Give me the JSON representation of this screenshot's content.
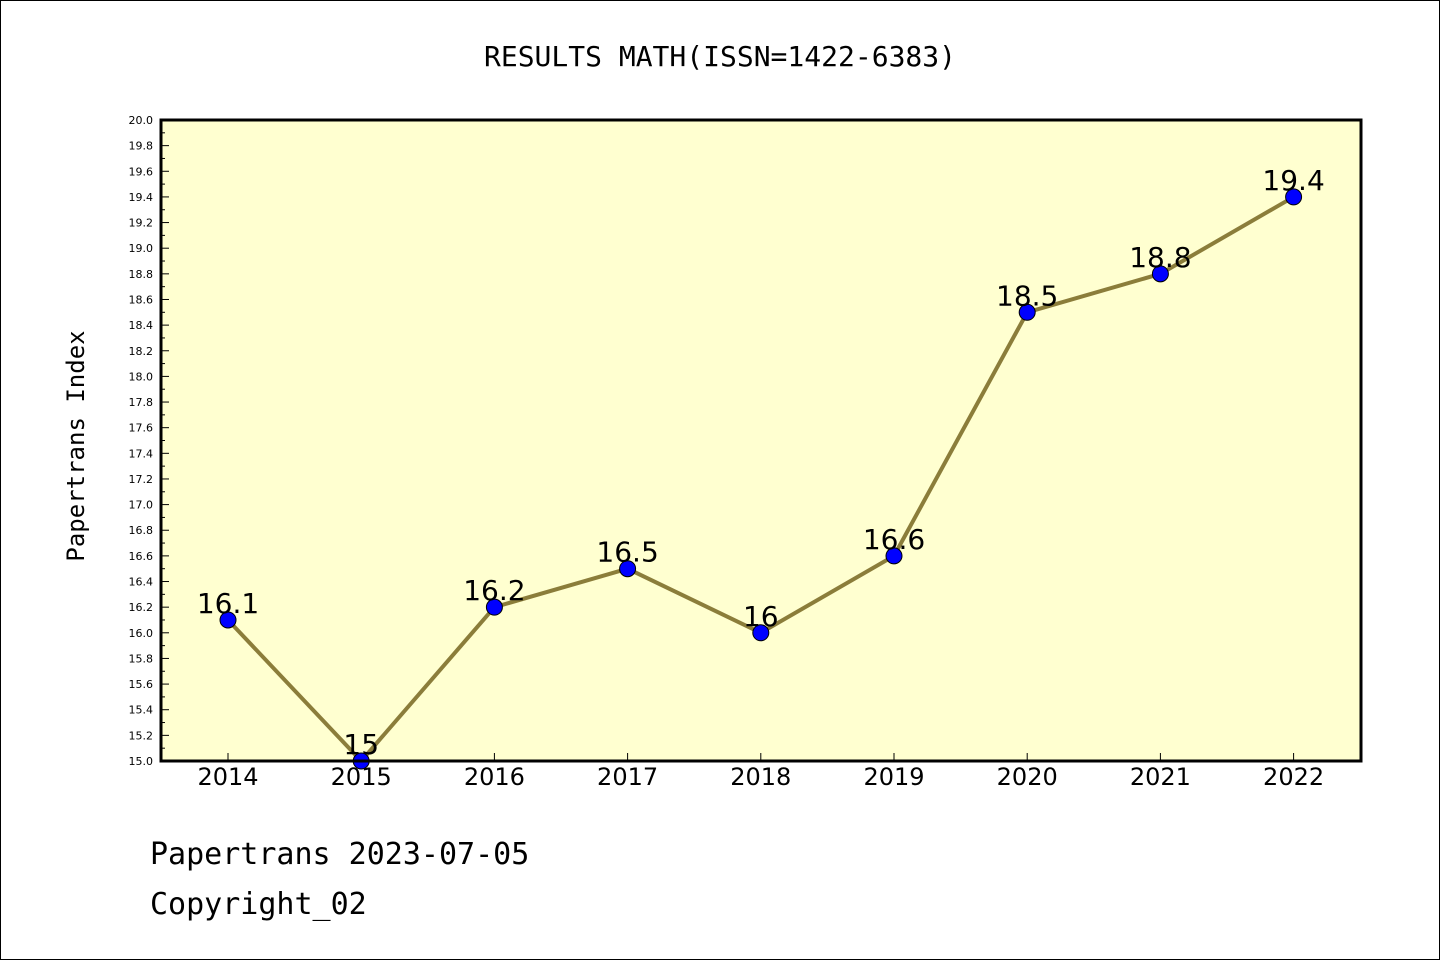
{
  "chart_data": {
    "type": "line",
    "title": "RESULTS MATH(ISSN=1422-6383)",
    "xlabel": "",
    "ylabel": "Papertrans Index",
    "categories": [
      "2014",
      "2015",
      "2016",
      "2017",
      "2018",
      "2019",
      "2020",
      "2021",
      "2022"
    ],
    "series": [
      {
        "values": [
          16.1,
          15,
          16.2,
          16.5,
          16,
          16.6,
          18.5,
          18.8,
          19.4
        ],
        "data_labels": [
          "16.1",
          "15",
          "16.2",
          "16.5",
          "16",
          "16.6",
          "18.5",
          "18.8",
          "19.4"
        ],
        "line_color": "#8b7d3a",
        "marker_color": "#0000ff"
      }
    ],
    "ylim": [
      15.0,
      20.0
    ],
    "y_ticks": [
      "15.0",
      "15.2",
      "15.4",
      "15.6",
      "15.8",
      "16.0",
      "16.2",
      "16.4",
      "16.6",
      "16.8",
      "17.0",
      "17.2",
      "17.4",
      "17.6",
      "17.8",
      "18.0",
      "18.2",
      "18.4",
      "18.6",
      "18.8",
      "19.0",
      "19.2",
      "19.4",
      "19.6",
      "19.8",
      "20.0"
    ],
    "plot_background": "#ffffd0",
    "grid": false,
    "legend": "none"
  },
  "footer": {
    "line1": "Papertrans 2023-07-05",
    "line2": "Copyright_02"
  }
}
